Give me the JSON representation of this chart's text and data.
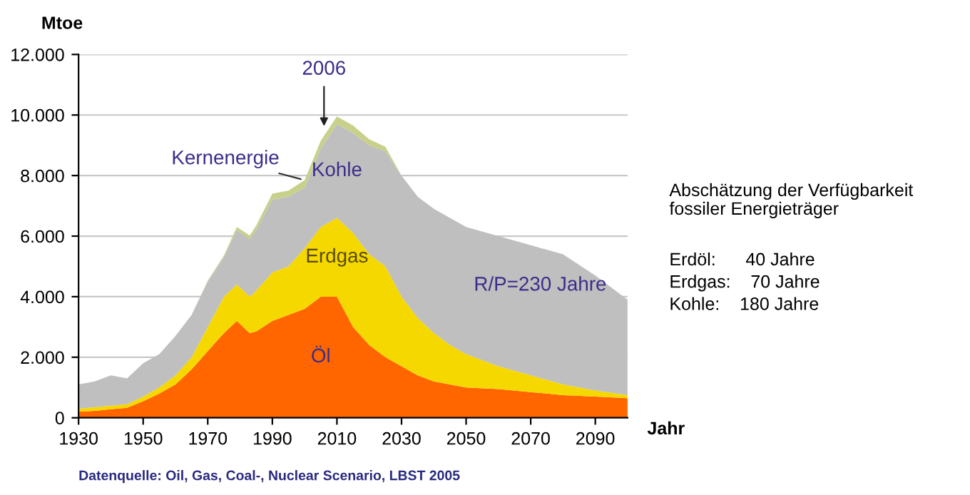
{
  "chart_data": {
    "type": "area",
    "stacked": true,
    "xlabel": "Jahr",
    "ylabel": "Mtoe",
    "x": [
      1930,
      1935,
      1940,
      1945,
      1950,
      1955,
      1960,
      1965,
      1970,
      1975,
      1979,
      1983,
      1985,
      1990,
      1995,
      2000,
      2005,
      2010,
      2015,
      2020,
      2025,
      2030,
      2035,
      2040,
      2045,
      2050,
      2060,
      2070,
      2080,
      2090,
      2100
    ],
    "series": [
      {
        "name": "Öl",
        "color": "#ff6600",
        "values": [
          200,
          230,
          280,
          330,
          550,
          800,
          1100,
          1600,
          2200,
          2800,
          3200,
          2800,
          2850,
          3200,
          3400,
          3600,
          4000,
          4000,
          3000,
          2400,
          2000,
          1700,
          1400,
          1200,
          1100,
          1000,
          950,
          850,
          750,
          700,
          650
        ]
      },
      {
        "name": "Erdgas",
        "color": "#f5d800",
        "values": [
          100,
          120,
          120,
          120,
          150,
          200,
          300,
          400,
          800,
          1200,
          1200,
          1200,
          1350,
          1600,
          1600,
          2000,
          2300,
          2600,
          3100,
          3000,
          3000,
          2300,
          1900,
          1600,
          1300,
          1100,
          750,
          550,
          350,
          200,
          100
        ]
      },
      {
        "name": "Kohle",
        "color": "#bfbfbf",
        "values": [
          800,
          850,
          1000,
          850,
          1100,
          1100,
          1300,
          1400,
          1500,
          1300,
          1800,
          1900,
          2000,
          2400,
          2300,
          2000,
          2600,
          3100,
          3300,
          3600,
          3800,
          4000,
          4000,
          4100,
          4200,
          4200,
          4300,
          4300,
          4300,
          3800,
          3150
        ]
      },
      {
        "name": "Kernenergie",
        "color": "#c8d08a",
        "values": [
          0,
          0,
          0,
          0,
          0,
          0,
          0,
          0,
          30,
          60,
          100,
          120,
          150,
          200,
          200,
          250,
          250,
          250,
          250,
          200,
          150,
          0,
          0,
          0,
          0,
          0,
          0,
          0,
          0,
          0,
          0
        ]
      }
    ],
    "xlim": [
      1930,
      2100
    ],
    "xticks": [
      1930,
      1950,
      1970,
      1990,
      2010,
      2030,
      2050,
      2070,
      2090
    ],
    "ylim": [
      0,
      12000
    ],
    "yticks": [
      0,
      {
        "value": 2000,
        "label": "2.000"
      },
      {
        "value": 4000,
        "label": "4.000"
      },
      {
        "value": 6000,
        "label": "6.000"
      },
      {
        "value": 8000,
        "label": "8.000"
      },
      {
        "value": 10000,
        "label": "10.000"
      },
      {
        "value": 12000,
        "label": "12.000"
      }
    ],
    "grid": "y",
    "legend": false,
    "annotations": [
      {
        "text": "2006",
        "x": 2006,
        "y": 9500
      },
      "R/P=230 Jahre",
      "Abschätzung der Verfügbarkeit\nfossiler Energieträger",
      "Erdöl:      40 Jahre",
      "Erdgas:    70 Jahre",
      "Kohle:    180 Jahre",
      "Datenquelle: Oil, Gas, Coal-, Nuclear Scenario, LBST 2005"
    ]
  }
}
